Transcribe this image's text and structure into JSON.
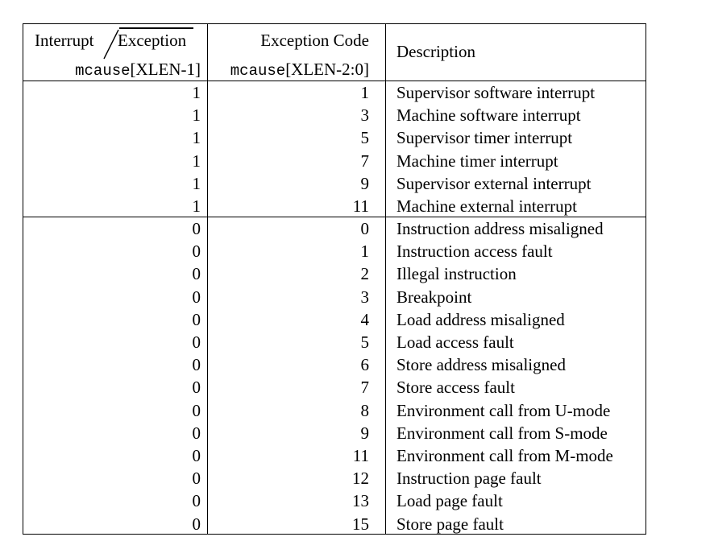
{
  "header": {
    "interrupt_label": "Interrupt",
    "exception_label": "Exception",
    "mcause_high_code": "mcause",
    "mcause_high_range": "[XLEN-1]",
    "exception_code_label": "Exception Code",
    "mcause_low_code": "mcause",
    "mcause_low_range": "[XLEN-2:0]",
    "description_label": "Description"
  },
  "interrupts": [
    {
      "interrupt": "1",
      "code": "1",
      "description": "Supervisor software interrupt"
    },
    {
      "interrupt": "1",
      "code": "3",
      "description": "Machine software interrupt"
    },
    {
      "interrupt": "1",
      "code": "5",
      "description": "Supervisor timer interrupt"
    },
    {
      "interrupt": "1",
      "code": "7",
      "description": "Machine timer interrupt"
    },
    {
      "interrupt": "1",
      "code": "9",
      "description": "Supervisor external interrupt"
    },
    {
      "interrupt": "1",
      "code": "11",
      "description": "Machine external interrupt"
    }
  ],
  "exceptions": [
    {
      "interrupt": "0",
      "code": "0",
      "description": "Instruction address misaligned"
    },
    {
      "interrupt": "0",
      "code": "1",
      "description": "Instruction access fault"
    },
    {
      "interrupt": "0",
      "code": "2",
      "description": "Illegal instruction"
    },
    {
      "interrupt": "0",
      "code": "3",
      "description": "Breakpoint"
    },
    {
      "interrupt": "0",
      "code": "4",
      "description": "Load address misaligned"
    },
    {
      "interrupt": "0",
      "code": "5",
      "description": "Load access fault"
    },
    {
      "interrupt": "0",
      "code": "6",
      "description": "Store address misaligned"
    },
    {
      "interrupt": "0",
      "code": "7",
      "description": "Store access fault"
    },
    {
      "interrupt": "0",
      "code": "8",
      "description": "Environment call from U-mode"
    },
    {
      "interrupt": "0",
      "code": "9",
      "description": "Environment call from S-mode"
    },
    {
      "interrupt": "0",
      "code": "11",
      "description": "Environment call from M-mode"
    },
    {
      "interrupt": "0",
      "code": "12",
      "description": "Instruction page fault"
    },
    {
      "interrupt": "0",
      "code": "13",
      "description": "Load page fault"
    },
    {
      "interrupt": "0",
      "code": "15",
      "description": "Store page fault"
    }
  ]
}
